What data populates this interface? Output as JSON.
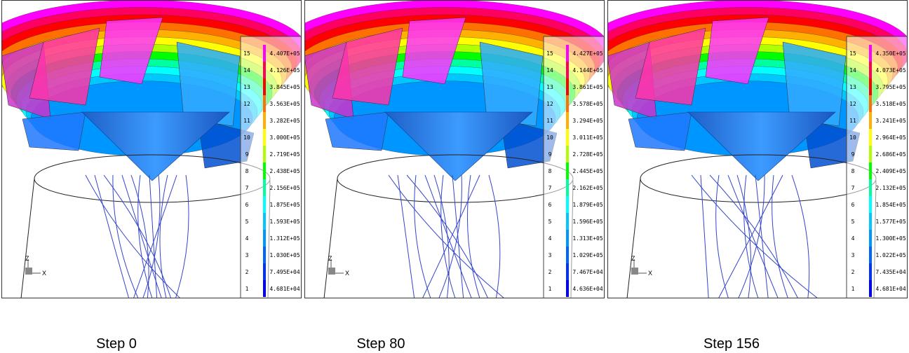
{
  "panels": [
    {
      "caption": "Step 0",
      "triad": {
        "z": "Z",
        "x": "X"
      },
      "legend": {
        "levels": [
          "15",
          "14",
          "13",
          "12",
          "11",
          "10",
          "9",
          "8",
          "7",
          "6",
          "5",
          "4",
          "3",
          "2",
          "1"
        ],
        "values": [
          "4.407E+05",
          "4.126E+05",
          "3.845E+05",
          "3.563E+05",
          "3.282E+05",
          "3.000E+05",
          "2.719E+05",
          "2.438E+05",
          "2.156E+05",
          "1.875E+05",
          "1.593E+05",
          "1.312E+05",
          "1.030E+05",
          "7.495E+04",
          "4.681E+04"
        ]
      }
    },
    {
      "caption": "Step 80",
      "triad": {
        "z": "Z",
        "x": "X"
      },
      "legend": {
        "levels": [
          "15",
          "14",
          "13",
          "12",
          "11",
          "10",
          "9",
          "8",
          "7",
          "6",
          "5",
          "4",
          "3",
          "2",
          "1"
        ],
        "values": [
          "4.427E+05",
          "4.144E+05",
          "3.861E+05",
          "3.578E+05",
          "3.294E+05",
          "3.011E+05",
          "2.728E+05",
          "2.445E+05",
          "2.162E+05",
          "1.879E+05",
          "1.596E+05",
          "1.313E+05",
          "1.029E+05",
          "7.467E+04",
          "4.636E+04"
        ]
      }
    },
    {
      "caption": "Step 156",
      "triad": {
        "z": "Z",
        "x": "X"
      },
      "legend": {
        "levels": [
          "15",
          "14",
          "13",
          "12",
          "11",
          "10",
          "9",
          "8",
          "7",
          "6",
          "5",
          "4",
          "3",
          "2",
          "1"
        ],
        "values": [
          "4.350E+05",
          "4.073E+05",
          "3.795E+05",
          "3.518E+05",
          "3.241E+05",
          "2.964E+05",
          "2.686E+05",
          "2.409E+05",
          "2.132E+05",
          "1.854E+05",
          "1.577E+05",
          "1.300E+05",
          "1.022E+05",
          "7.435E+04",
          "4.681E+04"
        ]
      }
    }
  ]
}
